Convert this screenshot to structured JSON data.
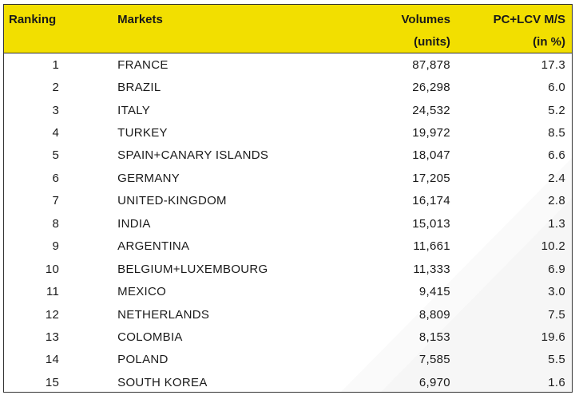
{
  "chart_data": {
    "type": "table",
    "columns": [
      {
        "key": "rank",
        "label": "Ranking",
        "sublabel": ""
      },
      {
        "key": "market",
        "label": "Markets",
        "sublabel": ""
      },
      {
        "key": "volume",
        "label": "Volumes",
        "sublabel": "(units)"
      },
      {
        "key": "share",
        "label": "PC+LCV M/S",
        "sublabel": "(in %)"
      }
    ],
    "rows": [
      {
        "rank": "1",
        "market": "FRANCE",
        "volume": "87,878",
        "share": "17.3"
      },
      {
        "rank": "2",
        "market": "BRAZIL",
        "volume": "26,298",
        "share": "6.0"
      },
      {
        "rank": "3",
        "market": "ITALY",
        "volume": "24,532",
        "share": "5.2"
      },
      {
        "rank": "4",
        "market": "TURKEY",
        "volume": "19,972",
        "share": "8.5"
      },
      {
        "rank": "5",
        "market": "SPAIN+CANARY ISLANDS",
        "volume": "18,047",
        "share": "6.6"
      },
      {
        "rank": "6",
        "market": "GERMANY",
        "volume": "17,205",
        "share": "2.4"
      },
      {
        "rank": "7",
        "market": "UNITED-KINGDOM",
        "volume": "16,174",
        "share": "2.8"
      },
      {
        "rank": "8",
        "market": "INDIA",
        "volume": "15,013",
        "share": "1.3"
      },
      {
        "rank": "9",
        "market": "ARGENTINA",
        "volume": "11,661",
        "share": "10.2"
      },
      {
        "rank": "10",
        "market": "BELGIUM+LUXEMBOURG",
        "volume": "11,333",
        "share": "6.9"
      },
      {
        "rank": "11",
        "market": "MEXICO",
        "volume": "9,415",
        "share": "3.0"
      },
      {
        "rank": "12",
        "market": "NETHERLANDS",
        "volume": "8,809",
        "share": "7.5"
      },
      {
        "rank": "13",
        "market": "COLOMBIA",
        "volume": "8,153",
        "share": "19.6"
      },
      {
        "rank": "14",
        "market": "POLAND",
        "volume": "7,585",
        "share": "5.5"
      },
      {
        "rank": "15",
        "market": "SOUTH KOREA",
        "volume": "6,970",
        "share": "1.6"
      }
    ]
  },
  "colors": {
    "header_background": "#f2df00",
    "text": "#1a1a1a",
    "border": "#333333"
  }
}
